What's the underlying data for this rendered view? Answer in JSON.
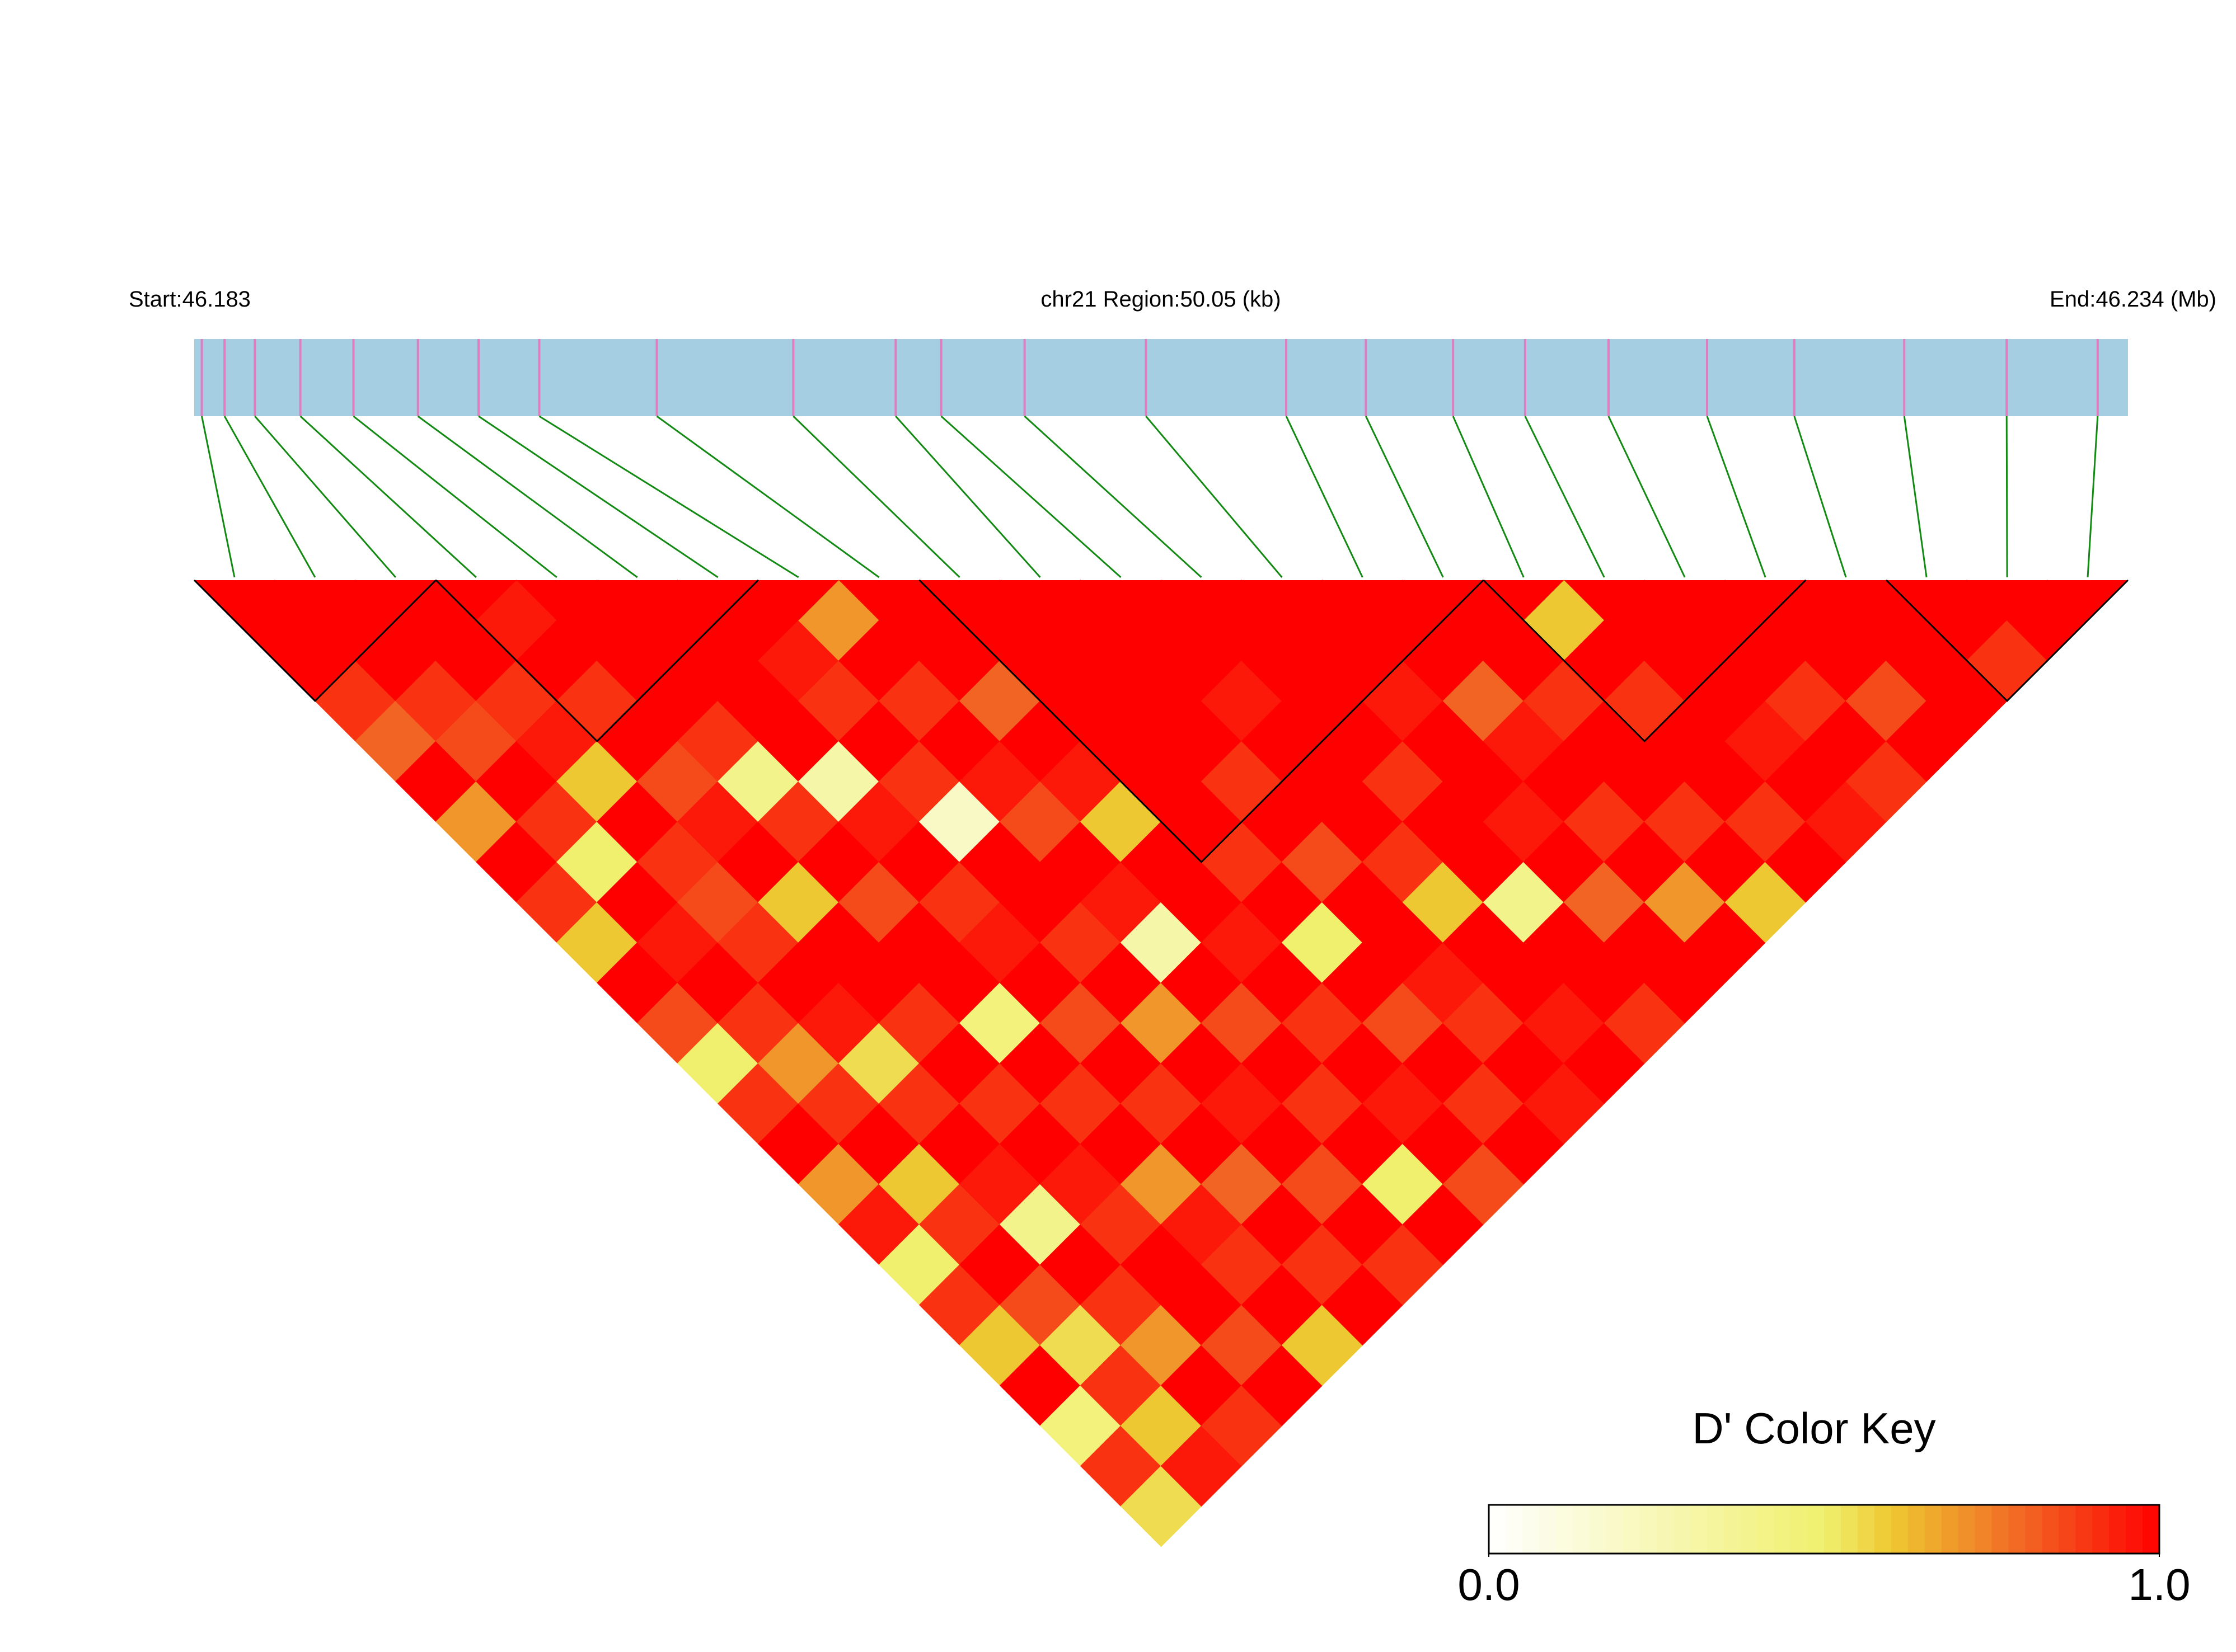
{
  "chart_data": {
    "type": "heatmap",
    "start_label": "Start:46.183",
    "region_label": "chr21 Region:50.05 (kb)",
    "end_label": "End:46.234 (Mb)",
    "xlim": [
      46.183,
      46.234
    ],
    "snp_positions": [
      46.1832,
      46.1838,
      46.1846,
      46.1858,
      46.1872,
      46.1889,
      46.1905,
      46.1921,
      46.1952,
      46.1988,
      46.2015,
      46.2027,
      46.2049,
      46.2081,
      46.2118,
      46.2139,
      46.2162,
      46.2181,
      46.2203,
      46.2229,
      46.2252,
      46.2281,
      46.2308,
      46.2332
    ],
    "ld_matrix": [
      [
        1
      ],
      [
        1,
        1
      ],
      [
        0.9,
        1,
        1
      ],
      [
        0.8,
        0.9,
        1,
        0.95
      ],
      [
        1,
        0.85,
        0.9,
        1,
        1
      ],
      [
        0.7,
        1,
        0.95,
        0.9,
        1,
        1
      ],
      [
        1,
        0.9,
        0.6,
        1,
        1,
        1,
        1
      ],
      [
        0.9,
        0.5,
        1,
        0.85,
        0.9,
        1,
        0.95,
        0.7
      ],
      [
        0.6,
        1,
        0.9,
        0.95,
        0.4,
        1,
        0.9,
        1,
        1
      ],
      [
        1,
        0.95,
        0.85,
        1,
        0.9,
        0.3,
        1,
        0.9,
        1,
        1
      ],
      [
        0.85,
        1,
        0.9,
        0.6,
        1,
        0.95,
        0.9,
        1,
        0.8,
        1,
        1
      ],
      [
        0.5,
        0.9,
        1,
        1,
        0.85,
        1,
        0.2,
        0.95,
        1,
        1,
        1,
        1
      ],
      [
        0.9,
        0.7,
        0.95,
        1,
        1,
        0.9,
        1,
        0.85,
        0.95,
        1,
        1,
        1,
        1
      ],
      [
        1,
        0.9,
        0.55,
        0.9,
        1,
        0.95,
        1,
        1,
        0.6,
        1,
        1,
        0.95,
        1,
        1
      ],
      [
        0.7,
        1,
        0.9,
        1,
        0.45,
        1,
        0.9,
        0.95,
        1,
        1,
        0.9,
        1,
        1,
        1,
        1
      ],
      [
        0.95,
        0.6,
        1,
        0.9,
        1,
        0.85,
        1,
        0.3,
        1,
        0.9,
        1,
        1,
        1,
        0.95,
        1,
        1
      ],
      [
        0.5,
        0.9,
        0.95,
        1,
        0.9,
        1,
        0.7,
        1,
        0.95,
        1,
        0.85,
        1,
        0.9,
        1,
        0.8,
        1,
        0.6
      ],
      [
        0.9,
        1,
        0.4,
        0.95,
        1,
        0.9,
        1,
        0.85,
        1,
        0.5,
        1,
        0.9,
        1,
        1,
        0.95,
        0.9,
        1,
        1
      ],
      [
        0.6,
        0.85,
        1,
        0.9,
        0.7,
        1,
        0.95,
        1,
        0.9,
        1,
        1,
        0.6,
        1,
        0.95,
        1,
        1,
        0.9,
        1,
        1
      ],
      [
        1,
        0.55,
        0.9,
        1,
        0.95,
        0.8,
        1,
        0.9,
        1,
        0.85,
        0.95,
        1,
        0.4,
        1,
        0.9,
        1,
        1,
        1,
        1,
        1
      ],
      [
        0.45,
        0.9,
        0.7,
        1,
        0.9,
        1,
        0.85,
        1,
        0.95,
        1,
        0.9,
        1,
        1,
        0.8,
        1,
        0.9,
        1,
        0.95,
        0.9,
        1,
        1
      ],
      [
        0.9,
        0.6,
        1,
        0.85,
        1,
        0.9,
        1,
        0.5,
        1,
        0.9,
        1,
        0.95,
        1,
        1,
        0.7,
        1,
        0.9,
        1,
        1,
        0.85,
        1,
        1
      ],
      [
        0.55,
        0.95,
        0.9,
        1,
        0.6,
        1,
        0.9,
        1,
        0.85,
        1,
        0.95,
        1,
        0.9,
        1,
        1,
        0.6,
        1,
        0.95,
        0.9,
        1,
        1,
        0.9,
        1
      ]
    ],
    "blocks": [
      [
        0,
        2
      ],
      [
        3,
        6
      ],
      [
        9,
        15
      ],
      [
        16,
        19
      ],
      [
        21,
        23
      ]
    ],
    "colorbar_title": "D' Color Key",
    "clim": [
      0,
      1
    ],
    "colorbar_ticks": [
      {
        "value": 0,
        "label": "0.0"
      },
      {
        "value": 1,
        "label": "1.0"
      }
    ],
    "gene_bar_color": "#a6cee3",
    "snp_stripe_color": "#e07cc0",
    "connector_color": "#138a13"
  }
}
